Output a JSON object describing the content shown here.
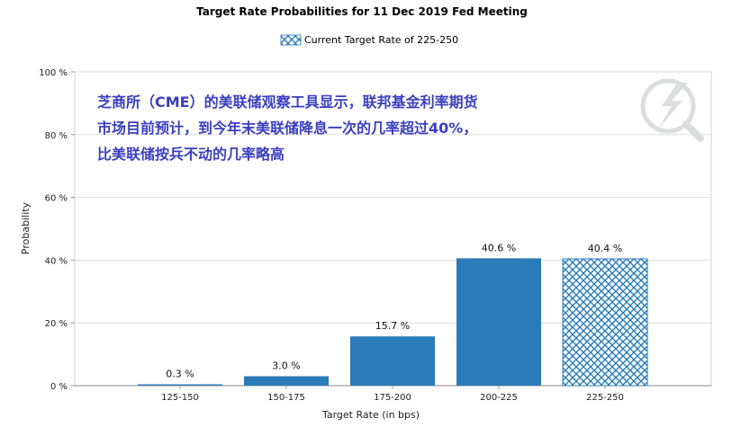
{
  "chart_data": {
    "type": "bar",
    "title": "Target Rate Probabilities for 11 Dec 2019 Fed Meeting",
    "xlabel": "Target Rate (in bps)",
    "ylabel": "Probability",
    "categories": [
      "125-150",
      "150-175",
      "175-200",
      "200-225",
      "225-250"
    ],
    "values": [
      0.3,
      3.0,
      15.7,
      40.6,
      40.4
    ],
    "data_labels": [
      "0.3 %",
      "3.0 %",
      "15.7 %",
      "40.6 %",
      "40.4 %"
    ],
    "current_target_category": "225-250",
    "ylim": [
      0,
      100
    ],
    "yticks": [
      0,
      20,
      40,
      60,
      80,
      100
    ],
    "ytick_labels": [
      "0 %",
      "20 %",
      "40 %",
      "60 %",
      "80 %",
      "100 %"
    ],
    "grid": true,
    "legend": {
      "position": "top-center",
      "entries": [
        "Current Target Rate of 225-250"
      ]
    },
    "colors": {
      "bar": "#2b7bb9",
      "current_target_hatch": "#2b7bb9",
      "grid": "#dddddd",
      "annotation": "#3a3fbf"
    }
  },
  "annotation": {
    "lines": [
      "芝商所（CME）的美联储观察工具显示，联邦基金利率期货",
      "市场目前预计，到今年末美联储降息一次的几率超过40%，",
      "比美联储按兵不动的几率略高"
    ]
  },
  "watermark": {
    "icon": "search-magnifier-lightning-watermark"
  }
}
